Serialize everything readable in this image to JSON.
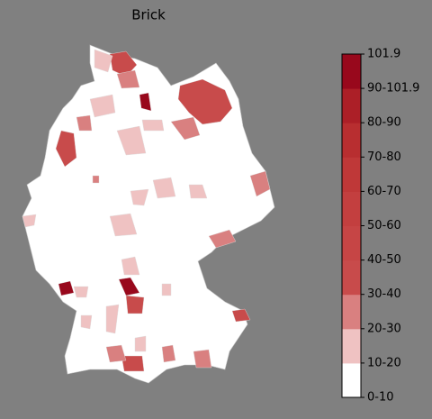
{
  "title": "Brick",
  "legend": {
    "labels": [
      "0-10",
      "10-20",
      "20-30",
      "30-40",
      "40-50",
      "50-60",
      "60-70",
      "70-80",
      "80-90",
      "90-101.9",
      "101.9"
    ],
    "colors": [
      "#ffffff",
      "#efc2c2",
      "#d98080",
      "#c84b4b",
      "#c64545",
      "#c33f3f",
      "#bf3838",
      "#b82e30",
      "#ac1f27",
      "#98081c"
    ]
  }
}
